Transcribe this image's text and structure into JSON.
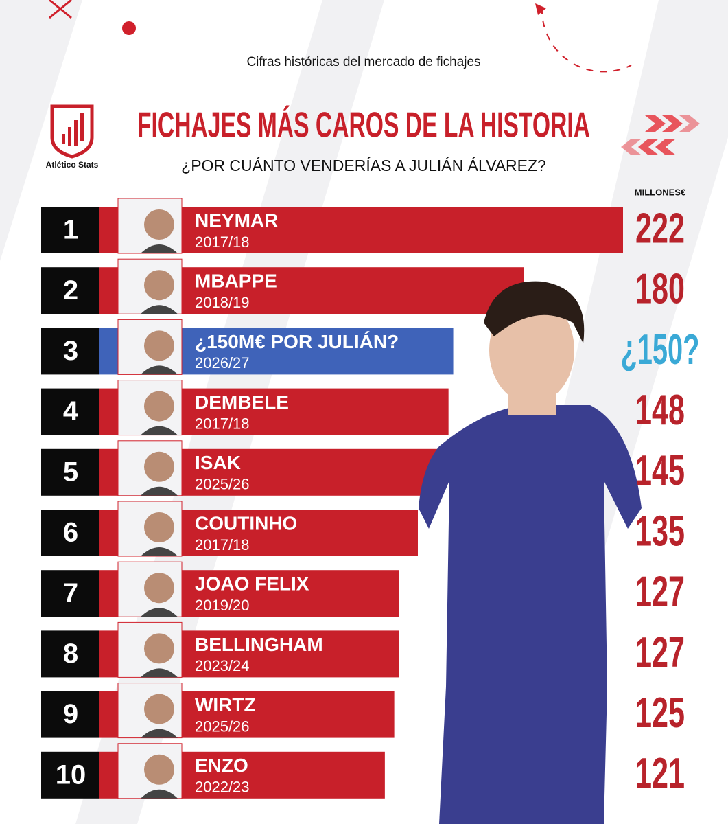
{
  "chart_data": {
    "type": "bar",
    "orientation": "horizontal",
    "brand": "Atlético Stats",
    "subtitle": "Cifras históricas del mercado de fichajes",
    "title": "FICHAJES MÁS CAROS DE LA HISTORIA",
    "question": "¿POR CUÁNTO VENDERÍAS A JULIÁN ÁLVAREZ?",
    "value_axis_label": "MILLONES€",
    "ranks": [
      "1",
      "2",
      "3",
      "4",
      "5",
      "6",
      "7",
      "8",
      "9",
      "10"
    ],
    "categories": [
      "NEYMAR",
      "MBAPPE",
      "¿150M€ POR JULIÁN?",
      "DEMBELE",
      "ISAK",
      "COUTINHO",
      "JOAO FELIX",
      "BELLINGHAM",
      "WIRTZ",
      "ENZO"
    ],
    "seasons": [
      "2017/18",
      "2018/19",
      "2026/27",
      "2017/18",
      "2025/26",
      "2017/18",
      "2019/20",
      "2023/24",
      "2025/26",
      "2022/23"
    ],
    "values": [
      222,
      180,
      150,
      148,
      145,
      135,
      127,
      127,
      125,
      121
    ],
    "value_labels": [
      "222",
      "180",
      "¿150?",
      "148",
      "145",
      "135",
      "127",
      "127",
      "125",
      "121"
    ],
    "colors": [
      "#c8202a",
      "#c8202a",
      "#3f63b9",
      "#c8202a",
      "#c8202a",
      "#c8202a",
      "#c8202a",
      "#c8202a",
      "#c8202a",
      "#c8202a"
    ],
    "label_colors": [
      "#b8232b",
      "#b8232b",
      "#3aa9d6",
      "#b8232b",
      "#b8232b",
      "#b8232b",
      "#b8232b",
      "#b8232b",
      "#b8232b",
      "#b8232b"
    ]
  }
}
